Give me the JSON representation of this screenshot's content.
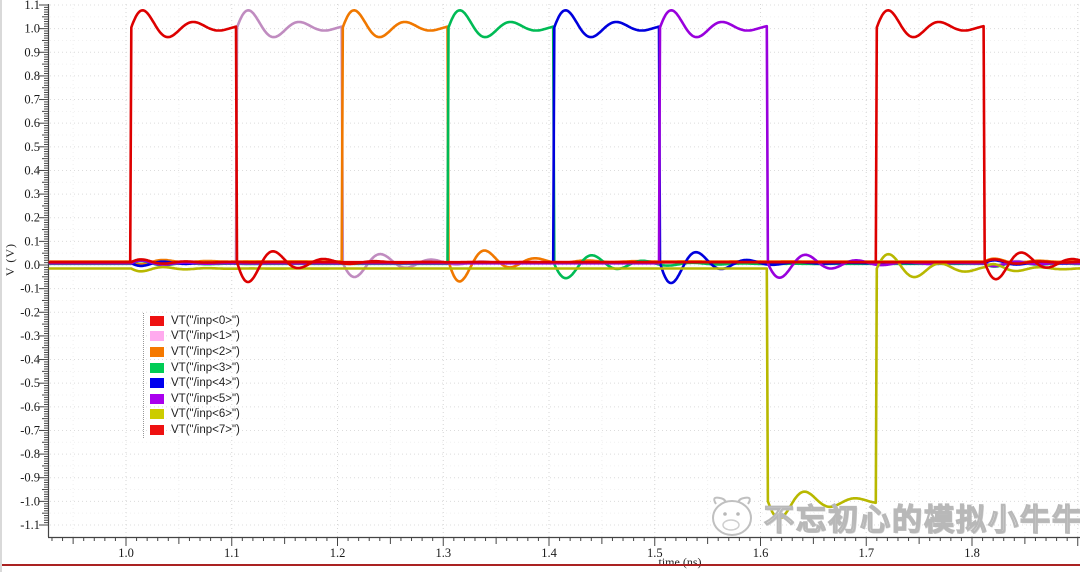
{
  "watermark": {
    "text": "不忘初心的模拟小牛牛"
  },
  "chart_data": {
    "type": "line",
    "title": "",
    "xlabel": "time (ns)",
    "ylabel": "V (V)",
    "xlim": [
      0.928,
      1.904
    ],
    "ylim": [
      -1.151,
      1.121
    ],
    "x_ticks": [
      "1.0",
      "1.1",
      "1.2",
      "1.3",
      "1.4",
      "1.5",
      "1.6",
      "1.7",
      "1.8"
    ],
    "y_ticks": [
      "1.1",
      "1.0",
      "0.9",
      "0.8",
      "0.7",
      "0.6",
      "0.5",
      "0.4",
      "0.3",
      "0.2",
      "0.1",
      "0.0",
      "-0.1",
      "-0.2",
      "-0.3",
      "-0.4",
      "-0.5",
      "-0.6",
      "-0.7",
      "-0.8",
      "-0.9",
      "-1.0",
      "-1.1"
    ],
    "grid": true,
    "legend_position": "inside-left-middle",
    "series": [
      {
        "name": "VT(\"/inp<0>\")",
        "color": "#dd0000",
        "swatch": "#ee1111",
        "baseline": 0.012,
        "pulse": {
          "t0": 1.005,
          "t1": 1.105,
          "level": 1.005
        }
      },
      {
        "name": "VT(\"/inp<1>\")",
        "color": "#c08cc0",
        "swatch": "#ffaaee",
        "baseline": 0.01,
        "pulse": {
          "t0": 1.105,
          "t1": 1.205,
          "level": 1.005
        }
      },
      {
        "name": "VT(\"/inp<2>\")",
        "color": "#f07800",
        "swatch": "#f57900",
        "baseline": 0.015,
        "pulse": {
          "t0": 1.205,
          "t1": 1.305,
          "level": 1.005
        }
      },
      {
        "name": "VT(\"/inp<3>\")",
        "color": "#00bb55",
        "swatch": "#00cc55",
        "baseline": 0.005,
        "pulse": {
          "t0": 1.305,
          "t1": 1.405,
          "level": 1.005
        }
      },
      {
        "name": "VT(\"/inp<4>\")",
        "color": "#0000dd",
        "swatch": "#0000ee",
        "baseline": 0.008,
        "pulse": {
          "t0": 1.405,
          "t1": 1.505,
          "level": 1.005
        }
      },
      {
        "name": "VT(\"/inp<5>\")",
        "color": "#9900dd",
        "swatch": "#aa00ee",
        "baseline": 0.007,
        "pulse": {
          "t0": 1.505,
          "t1": 1.607,
          "level": 1.005
        }
      },
      {
        "name": "VT(\"/inp<6>\")",
        "color": "#b8b800",
        "swatch": "#cccc00",
        "baseline": -0.015,
        "pulse": {
          "t0": 1.607,
          "t1": 1.71,
          "level": -1.0
        }
      },
      {
        "name": "VT(\"/inp<7>\")",
        "color": "#dd0000",
        "swatch": "#ee1111",
        "baseline": 0.012,
        "pulse": {
          "t0": 1.71,
          "t1": 1.812,
          "level": 1.005
        }
      }
    ],
    "ring": {
      "amp": 0.095,
      "period": 0.048,
      "tau": 0.042
    },
    "crosstalk": {
      "amp": 0.016,
      "period": 0.042,
      "tau": 0.032
    },
    "draw_order": [
      1,
      2,
      3,
      4,
      5,
      6,
      0,
      7
    ]
  }
}
